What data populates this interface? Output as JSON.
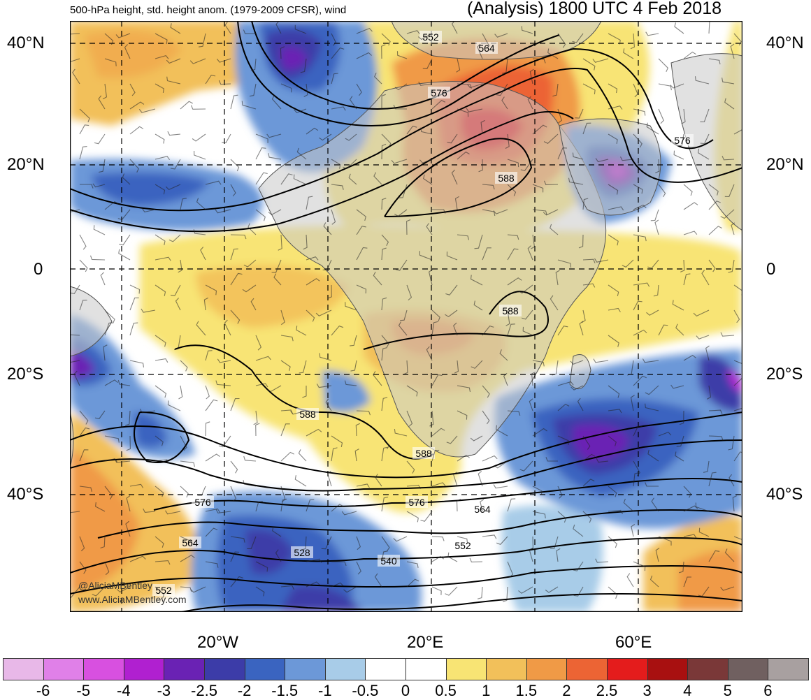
{
  "header": {
    "subtitle": "500-hPa height, std. height anom. (1979-2009 CFSR), wind",
    "title": "(Analysis) 1800 UTC 4 Feb 2018"
  },
  "lat_labels": [
    "40°N",
    "20°N",
    "0",
    "20°S",
    "40°S"
  ],
  "lon_labels": [
    "20°W",
    "20°E",
    "60°E"
  ],
  "credits": [
    "@AliciaMBentley",
    "www.AliciaMBentley.com"
  ],
  "contour_labels": [
    "552",
    "564",
    "576",
    "576",
    "588",
    "588",
    "588",
    "588",
    "576",
    "564",
    "552",
    "540",
    "528",
    "576",
    "564",
    "552"
  ],
  "colorbar": {
    "labels": [
      "-6",
      "-5",
      "-4",
      "-3",
      "-2.5",
      "-2",
      "-1.5",
      "-1",
      "-0.5",
      "0",
      "0.5",
      "1",
      "1.5",
      "2",
      "2.5",
      "3",
      "4",
      "5",
      "6"
    ],
    "colors": [
      "#e8b8e8",
      "#e080e8",
      "#d850e0",
      "#b020d0",
      "#6a22b4",
      "#3c3ca8",
      "#3a64c0",
      "#6c98d8",
      "#a8cce8",
      "#ffffff",
      "#ffffff",
      "#f8e474",
      "#f2c05a",
      "#f09a46",
      "#ec6434",
      "#e41c1c",
      "#a81010",
      "#7a3838",
      "#706060",
      "#a8a0a0"
    ]
  },
  "palette": {
    "ocean": "#ffffff",
    "land": "#c8c8c8",
    "grid": "#000000"
  }
}
